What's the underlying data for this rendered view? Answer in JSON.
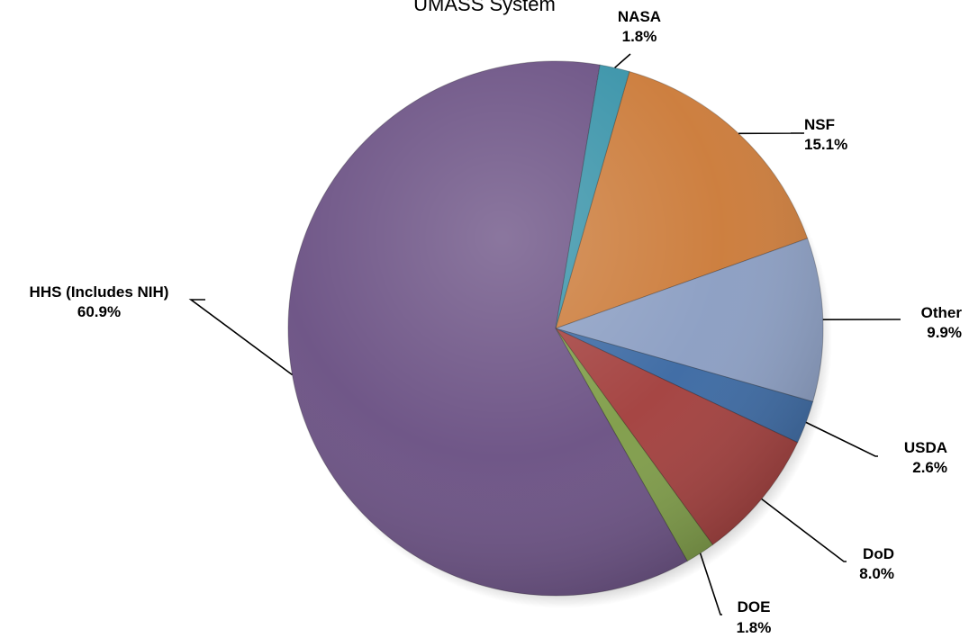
{
  "chart_data": {
    "type": "pie",
    "title": "UMASS System",
    "slices": [
      {
        "label": "NSF",
        "value": 15.1,
        "value_label": "15.1%",
        "color": "#CB7A38"
      },
      {
        "label": "Other",
        "value": 9.9,
        "value_label": "9.9%",
        "color": "#8A9DC2"
      },
      {
        "label": "USDA",
        "value": 2.6,
        "value_label": "2.6%",
        "color": "#3A68A2"
      },
      {
        "label": "DoD",
        "value": 8.0,
        "value_label": "8.0%",
        "color": "#A23E3C"
      },
      {
        "label": "DOE",
        "value": 1.8,
        "value_label": "1.8%",
        "color": "#7E9C47"
      },
      {
        "label": "HHS (Includes NIH)",
        "value": 60.9,
        "value_label": "60.9%",
        "color": "#6A5083"
      },
      {
        "label": "NASA",
        "value": 1.8,
        "value_label": "1.8%",
        "color": "#3792A8"
      }
    ]
  }
}
